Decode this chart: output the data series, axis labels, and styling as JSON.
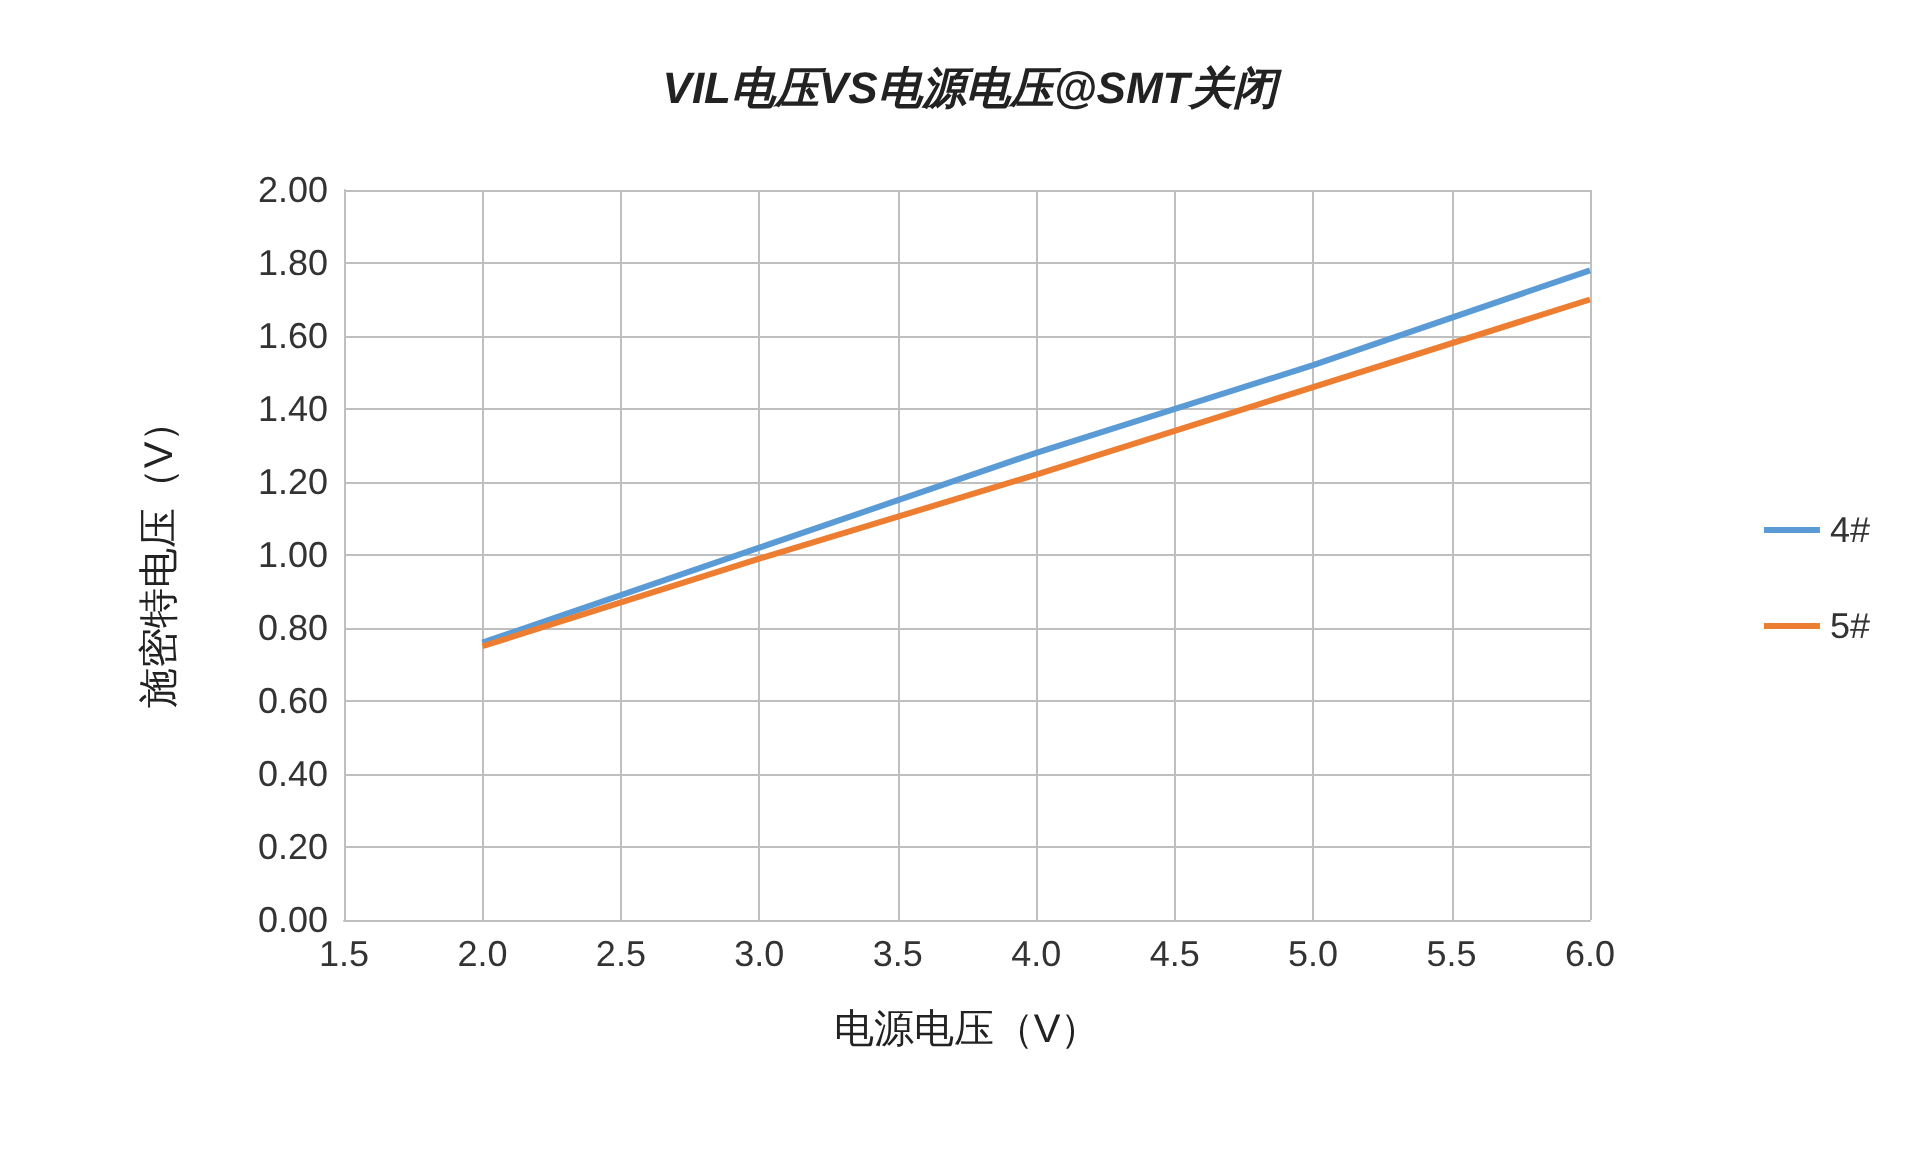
{
  "chart_data": {
    "type": "line",
    "title": "VIL电压VS电源电压@SMT关闭",
    "xlabel": "电源电压（V）",
    "ylabel": "施密特电压（V）",
    "x": [
      2.0,
      3.0,
      4.0,
      5.0,
      6.0
    ],
    "series": [
      {
        "name": "4#",
        "color": "#5b9bd5",
        "values": [
          0.76,
          1.02,
          1.28,
          1.52,
          1.78
        ]
      },
      {
        "name": "5#",
        "color": "#ed7d31",
        "values": [
          0.75,
          0.99,
          1.22,
          1.46,
          1.7
        ]
      }
    ],
    "xlim": [
      1.5,
      6.0
    ],
    "xticks": [
      {
        "value": 1.5,
        "label": "1.5"
      },
      {
        "value": 2,
        "label": "2.0"
      },
      {
        "value": 2.5,
        "label": "2.5"
      },
      {
        "value": 3,
        "label": "3.0"
      },
      {
        "value": 3.5,
        "label": "3.5"
      },
      {
        "value": 4,
        "label": "4.0"
      },
      {
        "value": 4.5,
        "label": "4.5"
      },
      {
        "value": 5,
        "label": "5.0"
      },
      {
        "value": 5.5,
        "label": "5.5"
      },
      {
        "value": 6,
        "label": "6.0"
      }
    ],
    "ylim": [
      0,
      2
    ],
    "yticks": [
      {
        "value": 0,
        "label": "0.00"
      },
      {
        "value": 0.2,
        "label": "0.20"
      },
      {
        "value": 0.4,
        "label": "0.40"
      },
      {
        "value": 0.6,
        "label": "0.60"
      },
      {
        "value": 0.8,
        "label": "0.80"
      },
      {
        "value": 1,
        "label": "1.00"
      },
      {
        "value": 1.2,
        "label": "1.20"
      },
      {
        "value": 1.4,
        "label": "1.40"
      },
      {
        "value": 1.6,
        "label": "1.60"
      },
      {
        "value": 1.8,
        "label": "1.80"
      },
      {
        "value": 2,
        "label": "2.00"
      }
    ],
    "grid": true,
    "legend": "right",
    "marker": "none",
    "line_style": "solid"
  }
}
